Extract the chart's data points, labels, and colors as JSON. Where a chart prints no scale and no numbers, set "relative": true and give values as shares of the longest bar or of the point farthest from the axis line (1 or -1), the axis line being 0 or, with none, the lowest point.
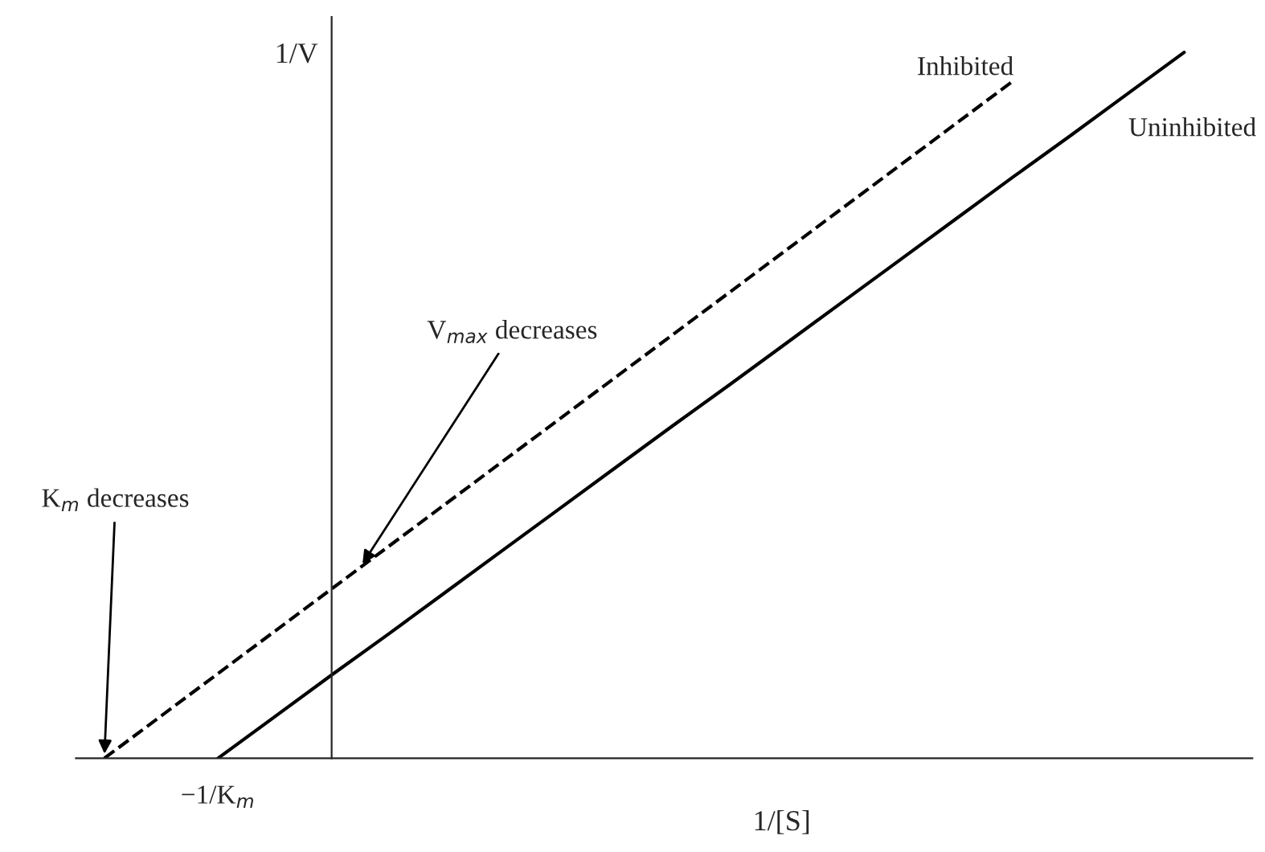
{
  "chart_data": {
    "type": "line",
    "relative": true,
    "xlabel": "1/[S]",
    "ylabel": "1/V",
    "grid": false,
    "legend": false,
    "marker": "none",
    "categories": [
      null,
      null,
      null,
      null,
      null,
      null,
      null,
      null,
      null,
      null,
      null,
      null,
      null,
      null,
      null,
      null,
      null,
      null,
      null,
      null
    ],
    "series": [
      {
        "name": "Inhibited",
        "color": "#000000",
        "line_style": "dashed",
        "values": [
          0,
          0.06,
          0.12,
          0.18,
          0.24,
          0.3,
          0.36,
          0.42,
          0.48,
          0.54,
          0.6,
          0.66,
          0.72,
          0.78,
          0.84,
          0.9,
          0.96,
          null,
          null,
          null
        ]
      },
      {
        "name": "Uninhibited",
        "color": "#000000",
        "line_style": "solid",
        "values": [
          null,
          null,
          0,
          0.059,
          0.118,
          0.176,
          0.235,
          0.294,
          0.353,
          0.412,
          0.471,
          0.529,
          0.588,
          0.647,
          0.706,
          0.765,
          0.824,
          0.882,
          0.941,
          1.0
        ]
      }
    ],
    "annotations": [
      "V$_{max}$ decreases",
      "K$_{m}$ decreases",
      "−1/K$_{m}$"
    ]
  }
}
